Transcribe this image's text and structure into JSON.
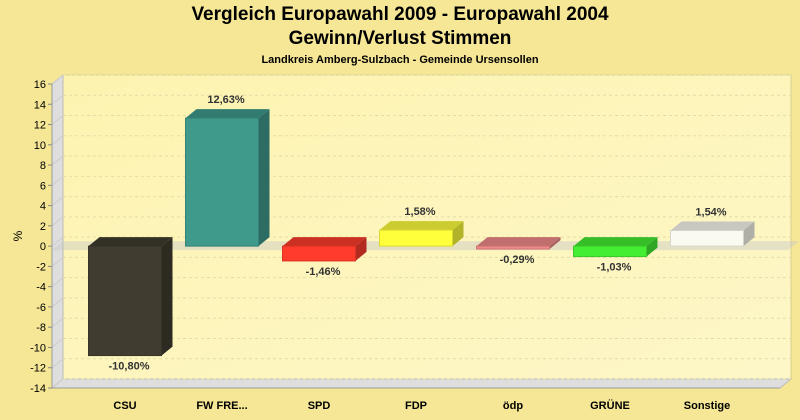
{
  "chart_data": {
    "type": "bar",
    "title": "Vergleich Europawahl 2009 - Europawahl 2004",
    "subtitle": "Gewinn/Verlust Stimmen",
    "subsubtitle": "Landkreis Amberg-Sulzbach - Gemeinde Ursensollen",
    "xlabel": "",
    "ylabel": "%",
    "ylim": [
      -14,
      16
    ],
    "yticks": [
      16,
      14,
      12,
      10,
      8,
      6,
      4,
      2,
      0,
      -2,
      -4,
      -6,
      -8,
      -10,
      -12,
      -14
    ],
    "grid": true,
    "categories": [
      "CSU",
      "FW FRE...",
      "SPD",
      "FDP",
      "ödp",
      "GRÜNE",
      "Sonstige"
    ],
    "values": [
      -10.8,
      12.63,
      -1.46,
      1.58,
      -0.29,
      -1.03,
      1.54
    ],
    "data_labels": [
      "-10,80%",
      "12,63%",
      "-1,46%",
      "1,58%",
      "-0,29%",
      "-1,03%",
      "1,54%"
    ],
    "colors": [
      "#403c30",
      "#3f9a8c",
      "#ff3c2c",
      "#ffff3c",
      "#f08a8a",
      "#44ee33",
      "#fafaf0"
    ]
  }
}
